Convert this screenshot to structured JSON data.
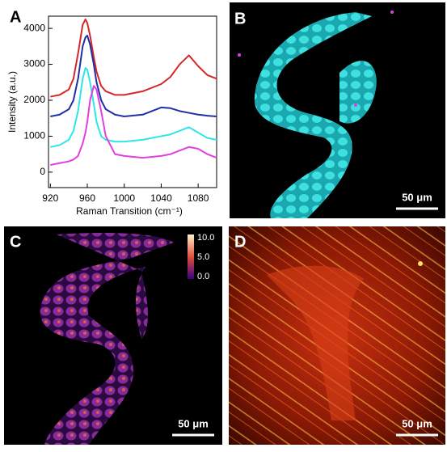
{
  "chart_data": {
    "type": "line",
    "panel_label": "A",
    "x_label": "Raman Transition (cm⁻¹)",
    "y_label": "Intensity (a.u.)",
    "x": [
      920,
      930,
      940,
      945,
      950,
      955,
      958,
      960,
      963,
      967,
      970,
      975,
      980,
      990,
      1000,
      1020,
      1040,
      1050,
      1060,
      1070,
      1080,
      1090,
      1100
    ],
    "series": [
      {
        "color": "#d62728",
        "values": [
          2100,
          2150,
          2300,
          2600,
          3300,
          4100,
          4250,
          4150,
          3800,
          3200,
          2800,
          2400,
          2250,
          2150,
          2150,
          2250,
          2450,
          2650,
          3000,
          3250,
          2950,
          2700,
          2600
        ]
      },
      {
        "color": "#1f2fa8",
        "values": [
          1550,
          1600,
          1750,
          2000,
          2600,
          3500,
          3750,
          3800,
          3550,
          3000,
          2500,
          2000,
          1750,
          1600,
          1550,
          1600,
          1800,
          1780,
          1700,
          1650,
          1600,
          1570,
          1550
        ]
      },
      {
        "color": "#2ee6e6",
        "values": [
          700,
          750,
          900,
          1150,
          1700,
          2600,
          2900,
          2850,
          2500,
          1900,
          1400,
          1000,
          900,
          850,
          850,
          900,
          1000,
          1050,
          1150,
          1250,
          1100,
          950,
          900
        ]
      },
      {
        "color": "#e040e0",
        "values": [
          200,
          250,
          300,
          350,
          450,
          800,
          1100,
          1400,
          2000,
          2400,
          2300,
          1700,
          1000,
          500,
          450,
          400,
          450,
          500,
          600,
          700,
          650,
          500,
          400
        ]
      }
    ],
    "xlim": [
      918,
      1100
    ],
    "ylim": [
      -430,
      4340
    ],
    "xticks": [
      920,
      960,
      1000,
      1040,
      1080
    ],
    "yticks": [
      0,
      1000,
      2000,
      3000,
      4000
    ]
  },
  "panels": {
    "B": {
      "label": "B",
      "scale_bar": "50 μm"
    },
    "C": {
      "label": "C",
      "scale_bar": "50 μm",
      "colorbar_labels": [
        "10.0",
        "5.0",
        "0.0"
      ]
    },
    "D": {
      "label": "D",
      "scale_bar": "50 μm"
    }
  }
}
